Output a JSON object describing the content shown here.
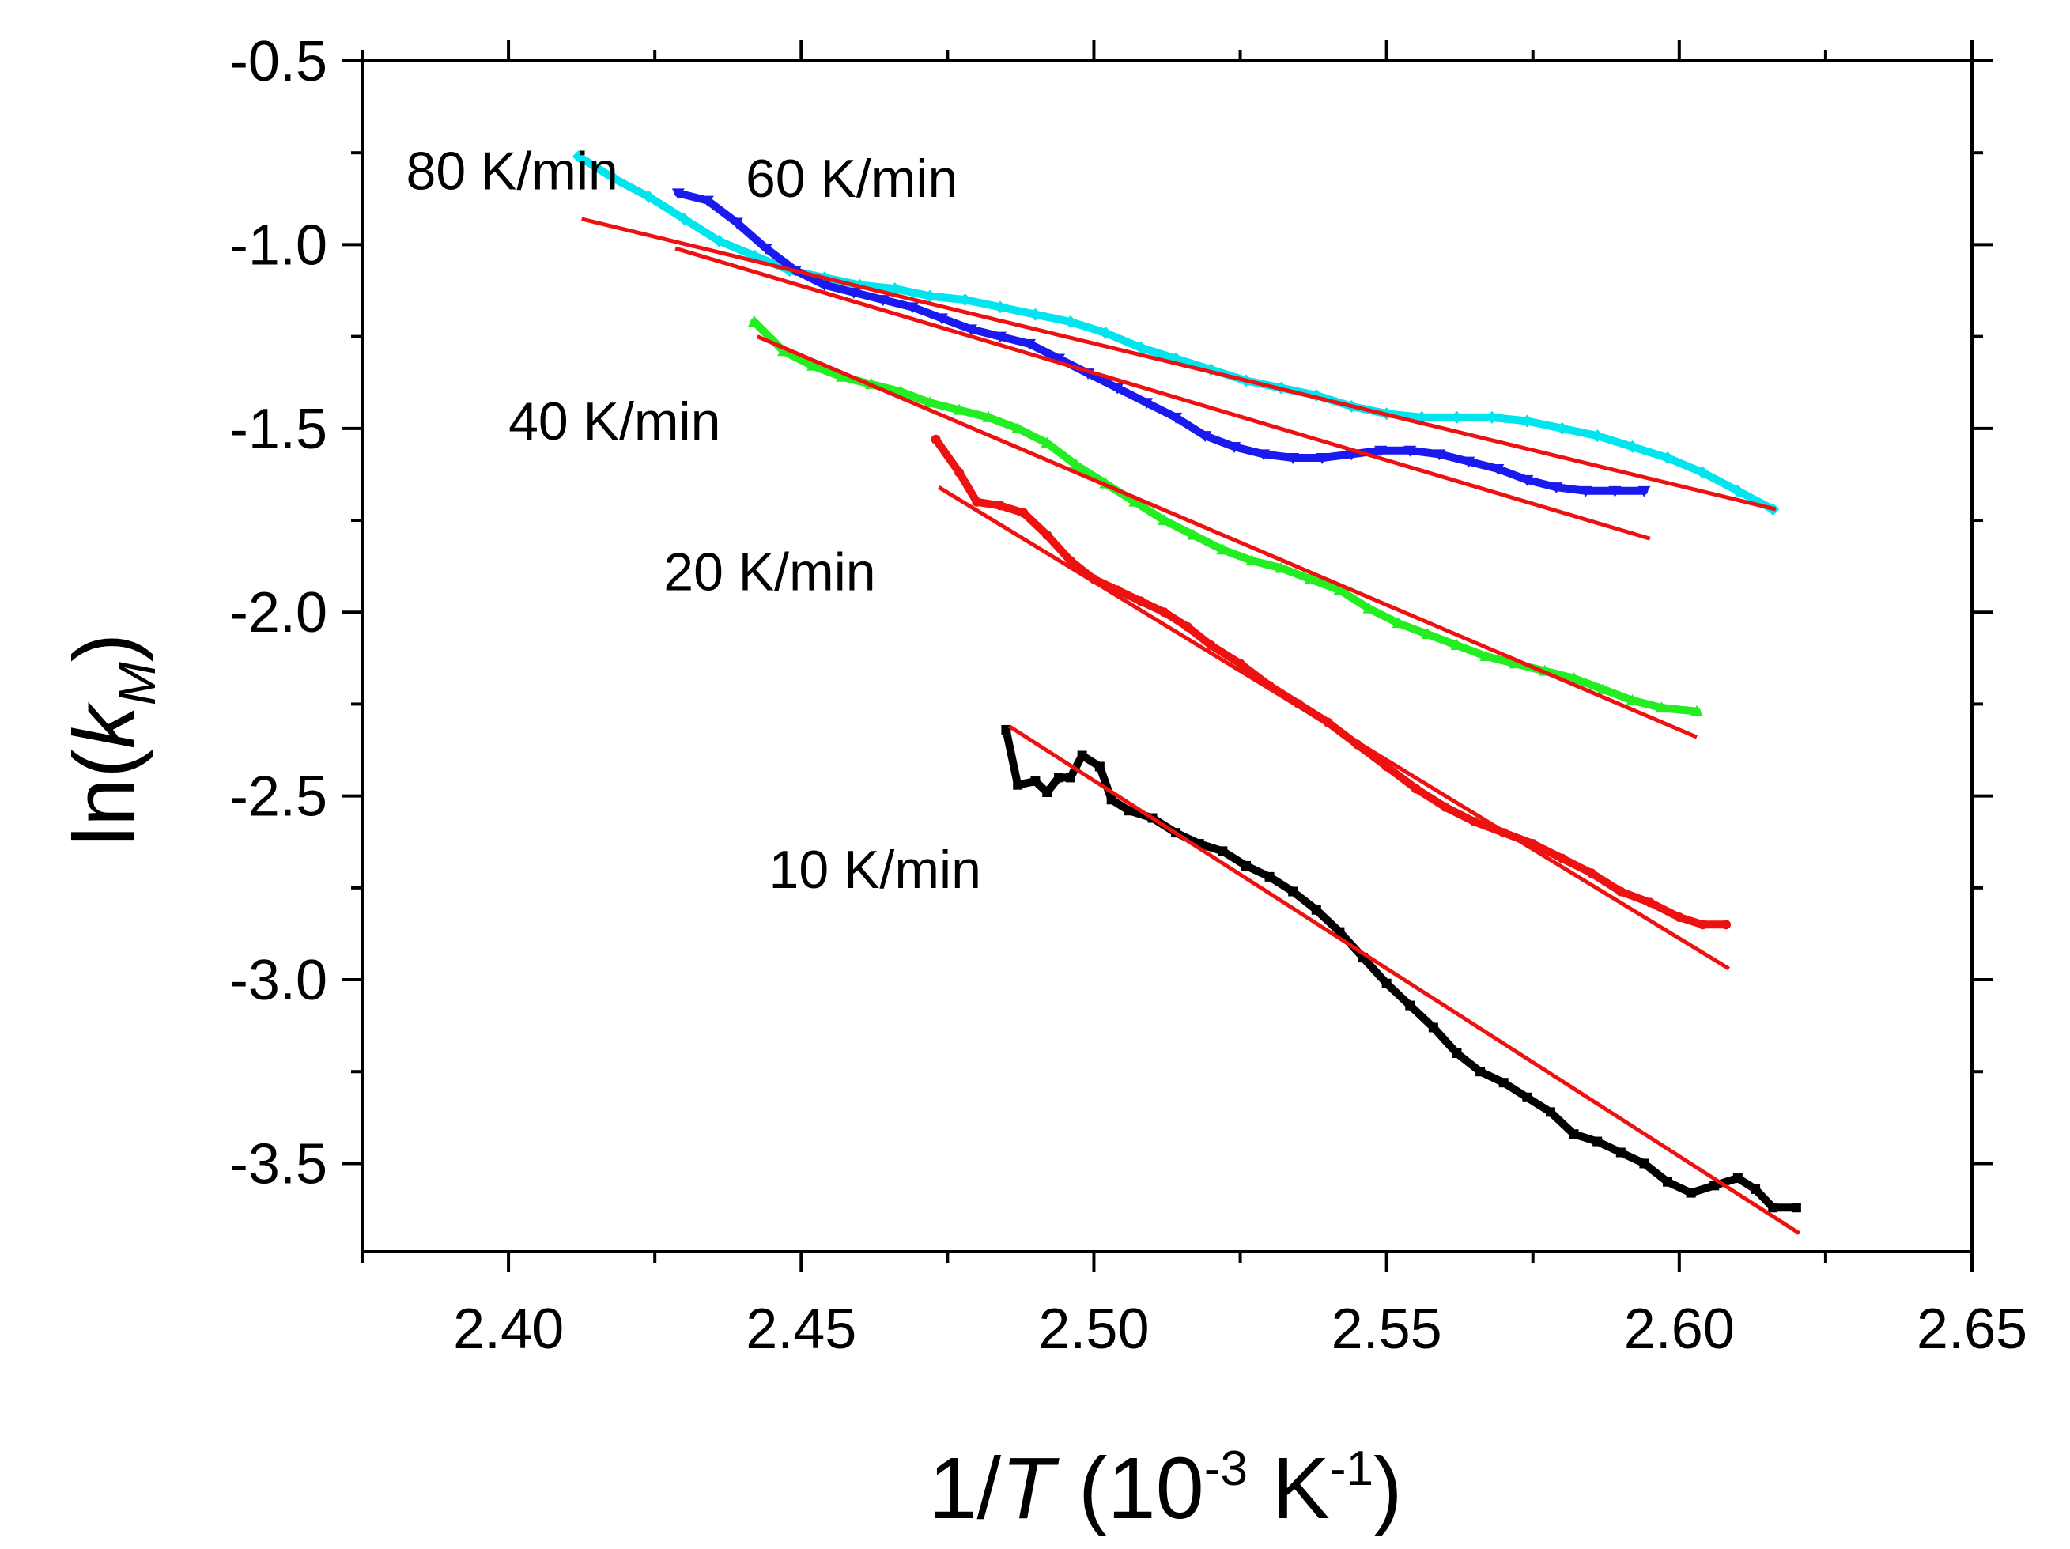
{
  "chart_data": {
    "type": "scatter",
    "title": "",
    "xlabel": {
      "prefix": "1/",
      "italic": "T",
      "suffix": " (10",
      "exp1": "-3",
      "unit": " K",
      "exp2": "-1",
      "close": ")"
    },
    "ylabel": {
      "prefix": "ln(",
      "italic": "k",
      "sub": "M",
      "close": ")"
    },
    "xlim": [
      2.375,
      2.65
    ],
    "ylim": [
      -3.74,
      -0.5
    ],
    "xticks": [
      2.4,
      2.45,
      2.5,
      2.55,
      2.6,
      2.65
    ],
    "xtick_labels": [
      "2.40",
      "2.45",
      "2.50",
      "2.55",
      "2.60",
      "2.65"
    ],
    "yticks": [
      -0.5,
      -1.0,
      -1.5,
      -2.0,
      -2.5,
      -3.0,
      -3.5
    ],
    "ytick_labels": [
      "-0.5",
      "-1.0",
      "-1.5",
      "-2.0",
      "-2.5",
      "-3.0",
      "-3.5"
    ],
    "grid": false,
    "series": [
      {
        "name": "80 K/min",
        "color": "#00e5ee",
        "marker": "diamond",
        "label_pos": [
          2.3825,
          -0.85
        ],
        "points": [
          [
            2.412,
            -0.76
          ],
          [
            2.418,
            -0.82
          ],
          [
            2.424,
            -0.87
          ],
          [
            2.43,
            -0.93
          ],
          [
            2.436,
            -0.99
          ],
          [
            2.442,
            -1.03
          ],
          [
            2.448,
            -1.07
          ],
          [
            2.454,
            -1.09
          ],
          [
            2.46,
            -1.11
          ],
          [
            2.466,
            -1.12
          ],
          [
            2.472,
            -1.14
          ],
          [
            2.478,
            -1.15
          ],
          [
            2.484,
            -1.17
          ],
          [
            2.49,
            -1.19
          ],
          [
            2.496,
            -1.21
          ],
          [
            2.502,
            -1.24
          ],
          [
            2.508,
            -1.28
          ],
          [
            2.514,
            -1.31
          ],
          [
            2.52,
            -1.34
          ],
          [
            2.526,
            -1.37
          ],
          [
            2.532,
            -1.39
          ],
          [
            2.538,
            -1.41
          ],
          [
            2.544,
            -1.44
          ],
          [
            2.55,
            -1.46
          ],
          [
            2.556,
            -1.47
          ],
          [
            2.562,
            -1.47
          ],
          [
            2.568,
            -1.47
          ],
          [
            2.574,
            -1.48
          ],
          [
            2.58,
            -1.5
          ],
          [
            2.586,
            -1.52
          ],
          [
            2.592,
            -1.55
          ],
          [
            2.598,
            -1.58
          ],
          [
            2.604,
            -1.62
          ],
          [
            2.61,
            -1.67
          ],
          [
            2.616,
            -1.72
          ]
        ],
        "fit": [
          [
            2.4125,
            -0.93
          ],
          [
            2.6165,
            -1.72
          ]
        ]
      },
      {
        "name": "60 K/min",
        "color": "#1a1aee",
        "marker": "triangle-down",
        "label_pos": [
          2.4405,
          -0.87
        ],
        "points": [
          [
            2.429,
            -0.86
          ],
          [
            2.434,
            -0.88
          ],
          [
            2.439,
            -0.94
          ],
          [
            2.444,
            -1.01
          ],
          [
            2.449,
            -1.07
          ],
          [
            2.454,
            -1.11
          ],
          [
            2.459,
            -1.13
          ],
          [
            2.464,
            -1.15
          ],
          [
            2.469,
            -1.17
          ],
          [
            2.474,
            -1.2
          ],
          [
            2.479,
            -1.23
          ],
          [
            2.484,
            -1.25
          ],
          [
            2.489,
            -1.27
          ],
          [
            2.494,
            -1.31
          ],
          [
            2.499,
            -1.35
          ],
          [
            2.504,
            -1.39
          ],
          [
            2.509,
            -1.43
          ],
          [
            2.514,
            -1.47
          ],
          [
            2.519,
            -1.52
          ],
          [
            2.524,
            -1.55
          ],
          [
            2.529,
            -1.57
          ],
          [
            2.534,
            -1.58
          ],
          [
            2.539,
            -1.58
          ],
          [
            2.544,
            -1.57
          ],
          [
            2.549,
            -1.56
          ],
          [
            2.554,
            -1.56
          ],
          [
            2.559,
            -1.57
          ],
          [
            2.564,
            -1.59
          ],
          [
            2.569,
            -1.61
          ],
          [
            2.574,
            -1.64
          ],
          [
            2.579,
            -1.66
          ],
          [
            2.584,
            -1.67
          ],
          [
            2.589,
            -1.67
          ],
          [
            2.594,
            -1.67
          ]
        ],
        "fit": [
          [
            2.4285,
            -1.01
          ],
          [
            2.595,
            -1.8
          ]
        ]
      },
      {
        "name": "40 K/min",
        "color": "#22ee22",
        "marker": "triangle-up",
        "label_pos": [
          2.4,
          -1.53
        ],
        "points": [
          [
            2.442,
            -1.21
          ],
          [
            2.447,
            -1.29
          ],
          [
            2.452,
            -1.33
          ],
          [
            2.457,
            -1.36
          ],
          [
            2.462,
            -1.38
          ],
          [
            2.467,
            -1.4
          ],
          [
            2.472,
            -1.43
          ],
          [
            2.477,
            -1.45
          ],
          [
            2.482,
            -1.47
          ],
          [
            2.487,
            -1.5
          ],
          [
            2.492,
            -1.54
          ],
          [
            2.497,
            -1.6
          ],
          [
            2.502,
            -1.65
          ],
          [
            2.507,
            -1.7
          ],
          [
            2.512,
            -1.75
          ],
          [
            2.517,
            -1.79
          ],
          [
            2.522,
            -1.83
          ],
          [
            2.527,
            -1.86
          ],
          [
            2.532,
            -1.88
          ],
          [
            2.537,
            -1.91
          ],
          [
            2.542,
            -1.94
          ],
          [
            2.547,
            -1.99
          ],
          [
            2.552,
            -2.03
          ],
          [
            2.557,
            -2.06
          ],
          [
            2.562,
            -2.09
          ],
          [
            2.567,
            -2.12
          ],
          [
            2.572,
            -2.14
          ],
          [
            2.577,
            -2.16
          ],
          [
            2.582,
            -2.18
          ],
          [
            2.587,
            -2.21
          ],
          [
            2.592,
            -2.24
          ],
          [
            2.597,
            -2.26
          ],
          [
            2.603,
            -2.27
          ]
        ],
        "fit": [
          [
            2.4425,
            -1.25
          ],
          [
            2.603,
            -2.34
          ]
        ]
      },
      {
        "name": "20 K/min",
        "color": "#ee1111",
        "marker": "circle",
        "label_pos": [
          2.4265,
          -1.94
        ],
        "points": [
          [
            2.473,
            -1.53
          ],
          [
            2.477,
            -1.62
          ],
          [
            2.48,
            -1.7
          ],
          [
            2.484,
            -1.71
          ],
          [
            2.488,
            -1.73
          ],
          [
            2.492,
            -1.79
          ],
          [
            2.496,
            -1.86
          ],
          [
            2.5,
            -1.91
          ],
          [
            2.504,
            -1.94
          ],
          [
            2.508,
            -1.97
          ],
          [
            2.512,
            -2.0
          ],
          [
            2.516,
            -2.04
          ],
          [
            2.52,
            -2.09
          ],
          [
            2.525,
            -2.14
          ],
          [
            2.53,
            -2.2
          ],
          [
            2.535,
            -2.25
          ],
          [
            2.54,
            -2.3
          ],
          [
            2.545,
            -2.36
          ],
          [
            2.55,
            -2.42
          ],
          [
            2.555,
            -2.48
          ],
          [
            2.56,
            -2.53
          ],
          [
            2.565,
            -2.57
          ],
          [
            2.57,
            -2.6
          ],
          [
            2.575,
            -2.63
          ],
          [
            2.58,
            -2.67
          ],
          [
            2.585,
            -2.71
          ],
          [
            2.59,
            -2.76
          ],
          [
            2.595,
            -2.79
          ],
          [
            2.6,
            -2.83
          ],
          [
            2.604,
            -2.85
          ],
          [
            2.608,
            -2.85
          ]
        ],
        "fit": [
          [
            2.4735,
            -1.66
          ],
          [
            2.6085,
            -2.97
          ]
        ]
      },
      {
        "name": "10 K/min",
        "color": "#000000",
        "marker": "square",
        "label_pos": [
          2.4445,
          -2.75
        ],
        "points": [
          [
            2.485,
            -2.32
          ],
          [
            2.487,
            -2.47
          ],
          [
            2.49,
            -2.46
          ],
          [
            2.492,
            -2.49
          ],
          [
            2.494,
            -2.45
          ],
          [
            2.496,
            -2.45
          ],
          [
            2.498,
            -2.39
          ],
          [
            2.501,
            -2.42
          ],
          [
            2.503,
            -2.51
          ],
          [
            2.506,
            -2.54
          ],
          [
            2.51,
            -2.56
          ],
          [
            2.514,
            -2.6
          ],
          [
            2.518,
            -2.63
          ],
          [
            2.522,
            -2.65
          ],
          [
            2.526,
            -2.69
          ],
          [
            2.53,
            -2.72
          ],
          [
            2.534,
            -2.76
          ],
          [
            2.538,
            -2.81
          ],
          [
            2.542,
            -2.87
          ],
          [
            2.546,
            -2.94
          ],
          [
            2.55,
            -3.01
          ],
          [
            2.554,
            -3.07
          ],
          [
            2.558,
            -3.13
          ],
          [
            2.562,
            -3.2
          ],
          [
            2.566,
            -3.25
          ],
          [
            2.57,
            -3.28
          ],
          [
            2.574,
            -3.32
          ],
          [
            2.578,
            -3.36
          ],
          [
            2.582,
            -3.42
          ],
          [
            2.586,
            -3.44
          ],
          [
            2.59,
            -3.47
          ],
          [
            2.594,
            -3.5
          ],
          [
            2.598,
            -3.55
          ],
          [
            2.602,
            -3.58
          ],
          [
            2.606,
            -3.56
          ],
          [
            2.61,
            -3.54
          ],
          [
            2.613,
            -3.57
          ],
          [
            2.616,
            -3.62
          ],
          [
            2.62,
            -3.62
          ]
        ],
        "fit": [
          [
            2.4855,
            -2.31
          ],
          [
            2.6205,
            -3.69
          ]
        ]
      }
    ],
    "fit_color": "#ee1111"
  }
}
